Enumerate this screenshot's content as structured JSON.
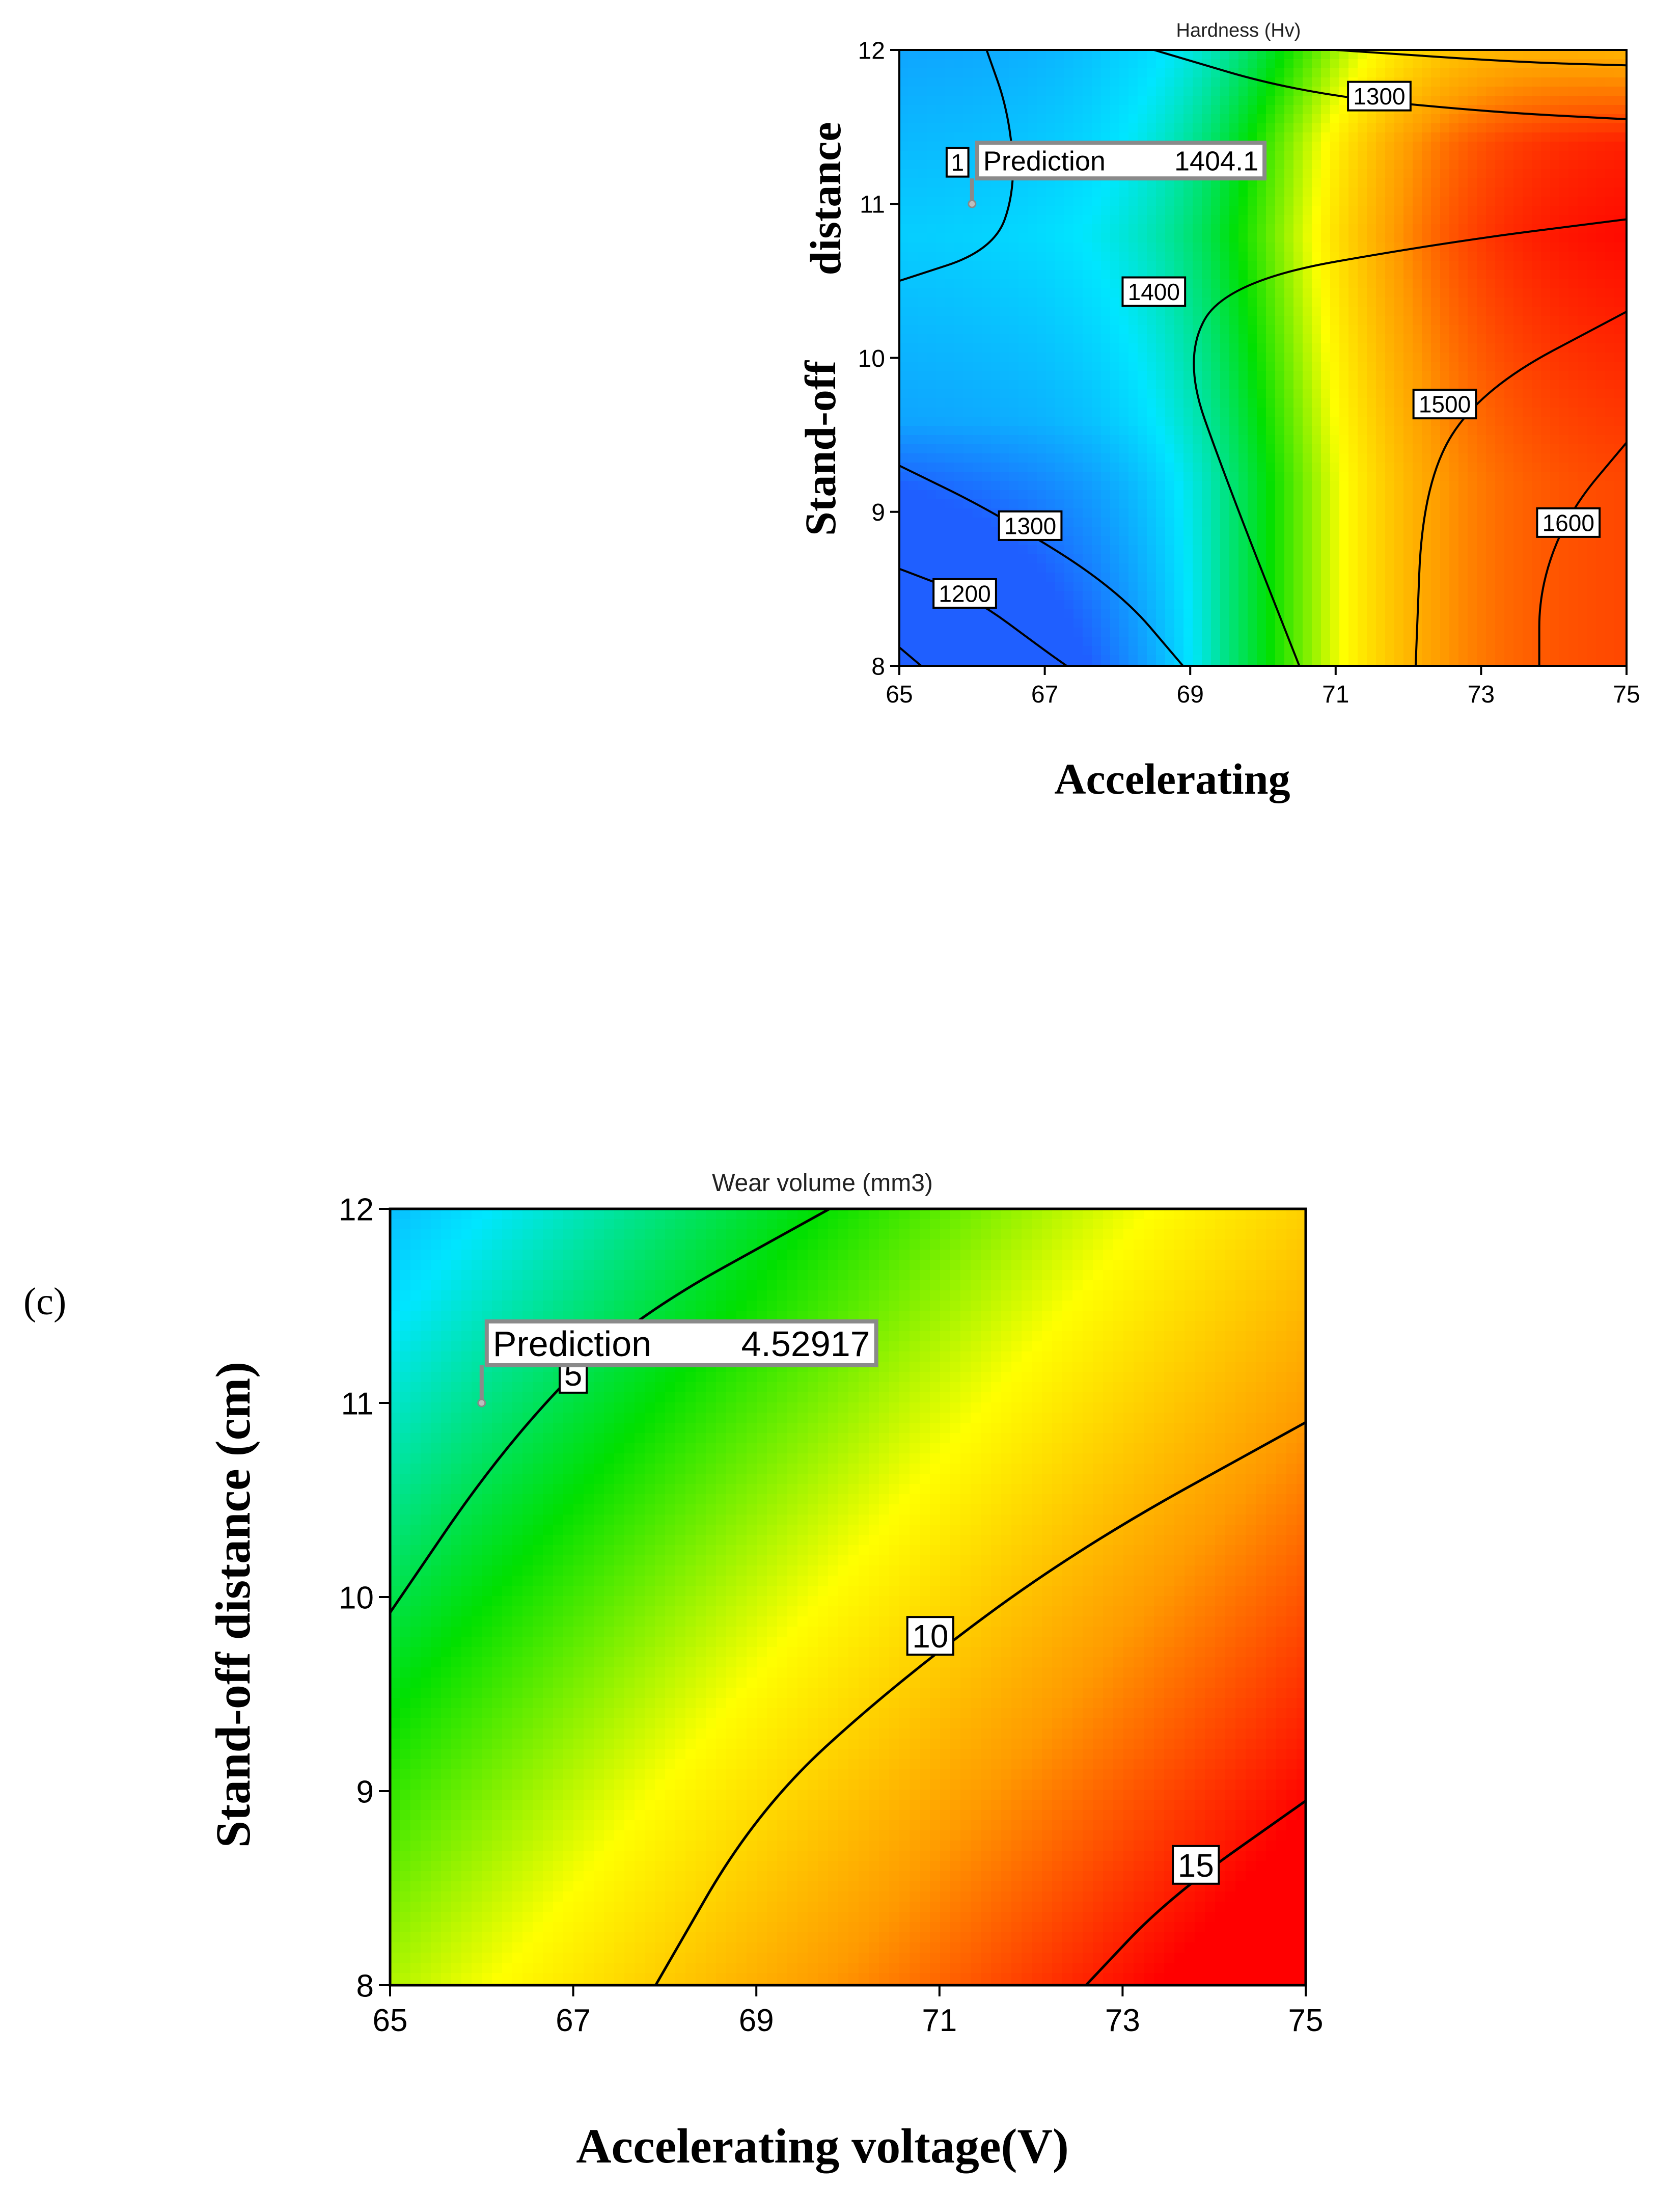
{
  "chart_data": [
    {
      "type": "contour",
      "title": "Hardness (Hv)",
      "xlabel": "Accelerating",
      "ylabel_parts": [
        "Stand-off",
        "distance"
      ],
      "xlim": [
        65,
        75
      ],
      "ylim": [
        8,
        12
      ],
      "xticks": [
        "65",
        "67",
        "69",
        "71",
        "73",
        "75"
      ],
      "yticks": [
        "8",
        "9",
        "10",
        "11",
        "12"
      ],
      "colormap": [
        "#1f5fff",
        "#00e6ff",
        "#00e000",
        "#ffff00",
        "#ff9a00",
        "#ff0000"
      ],
      "contour_labels": [
        {
          "text": "1300",
          "x": 71.6,
          "y": 11.7
        },
        {
          "text": "1",
          "x": 65.8,
          "y": 11.27
        },
        {
          "text": "1400",
          "x": 68.5,
          "y": 10.43
        },
        {
          "text": "1500",
          "x": 72.5,
          "y": 9.7
        },
        {
          "text": "1600",
          "x": 74.2,
          "y": 8.93
        },
        {
          "text": "1300",
          "x": 66.8,
          "y": 8.91
        },
        {
          "text": "1200",
          "x": 65.9,
          "y": 8.47
        }
      ],
      "contour_lines": [
        [
          [
            68.5,
            12.0
          ],
          [
            70.5,
            11.72
          ],
          [
            73.0,
            11.6
          ],
          [
            75.0,
            11.55
          ]
        ],
        [
          [
            71.0,
            12.0
          ],
          [
            73.5,
            11.92
          ],
          [
            75.0,
            11.9
          ]
        ],
        [
          [
            66.2,
            12.0
          ],
          [
            66.5,
            11.6
          ],
          [
            66.6,
            11.1
          ],
          [
            66.3,
            10.7
          ],
          [
            65.0,
            10.5
          ]
        ],
        [
          [
            75.0,
            10.9
          ],
          [
            72.5,
            10.75
          ],
          [
            69.5,
            10.5
          ],
          [
            68.9,
            10.0
          ],
          [
            69.5,
            9.2
          ],
          [
            70.5,
            8.0
          ]
        ],
        [
          [
            75.0,
            10.3
          ],
          [
            73.0,
            9.8
          ],
          [
            72.2,
            9.2
          ],
          [
            72.1,
            8.0
          ]
        ],
        [
          [
            75.0,
            9.45
          ],
          [
            74.2,
            9.0
          ],
          [
            73.8,
            8.5
          ],
          [
            73.8,
            8.0
          ]
        ],
        [
          [
            65.0,
            9.3
          ],
          [
            66.3,
            9.0
          ],
          [
            68.0,
            8.5
          ],
          [
            68.9,
            8.0
          ]
        ],
        [
          [
            65.0,
            8.63
          ],
          [
            66.0,
            8.45
          ],
          [
            67.0,
            8.1
          ],
          [
            67.3,
            8.0
          ]
        ],
        [
          [
            65.0,
            8.12
          ],
          [
            65.3,
            8.0
          ]
        ]
      ],
      "prediction": {
        "label": "Prediction",
        "value": "1404.1",
        "x": 66.0,
        "y": 11.0
      }
    },
    {
      "type": "contour",
      "panel_label": "(c)",
      "title": "Wear volume (mm3)",
      "xlabel": "Accelerating voltage(V)",
      "ylabel": "Stand-off distance (cm)",
      "xlim": [
        65,
        75
      ],
      "ylim": [
        8,
        12
      ],
      "xticks": [
        "65",
        "67",
        "69",
        "71",
        "73",
        "75"
      ],
      "yticks": [
        "8",
        "9",
        "10",
        "11",
        "12"
      ],
      "colormap": [
        "#1f5fff",
        "#00e6ff",
        "#00e000",
        "#ffff00",
        "#ff9a00",
        "#ff0000"
      ],
      "contour_labels": [
        {
          "text": "5",
          "x": 67.0,
          "y": 11.15
        },
        {
          "text": "10",
          "x": 70.9,
          "y": 9.8
        },
        {
          "text": "15",
          "x": 73.8,
          "y": 8.62
        }
      ],
      "contour_lines": [
        [
          [
            65.0,
            9.92
          ],
          [
            66.2,
            10.75
          ],
          [
            67.5,
            11.4
          ],
          [
            69.8,
            12.0
          ]
        ],
        [
          [
            67.9,
            8.0
          ],
          [
            69.0,
            8.9
          ],
          [
            70.5,
            9.55
          ],
          [
            72.5,
            10.25
          ],
          [
            75.0,
            10.9
          ]
        ],
        [
          [
            72.6,
            8.0
          ],
          [
            73.5,
            8.45
          ],
          [
            75.0,
            8.95
          ]
        ]
      ],
      "prediction": {
        "label": "Prediction",
        "value": "4.52917",
        "x": 66.0,
        "y": 11.0
      }
    }
  ]
}
